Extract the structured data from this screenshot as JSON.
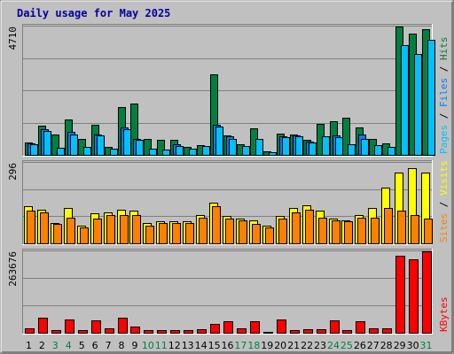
{
  "title": "Daily usage for May 2025",
  "colors": {
    "background": "#c0c0c0",
    "panel": "#c0c0c0",
    "title": "#0000a0",
    "hits": "#008040",
    "files": "#0080ff",
    "pages": "#00c0ff",
    "visits": "#ffff00",
    "sites": "#ff8000",
    "kbytes": "#ff0000",
    "weekday_label": "#000000",
    "weekend_label": "#008040",
    "separator": "#000000"
  },
  "chart_data": [
    {
      "type": "bar",
      "panel": "top",
      "scale_label": "4710",
      "ylim": [
        0,
        4710
      ],
      "right_labels": [
        {
          "text": "Pages",
          "color": "#00c0ff"
        },
        {
          "text": " / ",
          "color": "#000000"
        },
        {
          "text": "Files",
          "color": "#0080ff"
        },
        {
          "text": " / ",
          "color": "#000000"
        },
        {
          "text": "Hits",
          "color": "#008040"
        }
      ],
      "categories": [
        "1",
        "2",
        "3",
        "4",
        "5",
        "6",
        "7",
        "8",
        "9",
        "10",
        "11",
        "12",
        "13",
        "14",
        "15",
        "16",
        "17",
        "18",
        "19",
        "20",
        "21",
        "22",
        "23",
        "24",
        "25",
        "26",
        "27",
        "28",
        "29",
        "30",
        "31"
      ],
      "series": [
        {
          "name": "Hits",
          "color": "#008040",
          "values": [
            440,
            1060,
            740,
            1300,
            590,
            1090,
            290,
            1740,
            1900,
            600,
            560,
            560,
            290,
            360,
            2970,
            720,
            390,
            970,
            120,
            780,
            760,
            550,
            1140,
            1250,
            1350,
            1020,
            600,
            410,
            4710,
            4440,
            4610
          ]
        },
        {
          "name": "Files",
          "color": "#0080ff",
          "values": [
            410,
            940,
            0,
            830,
            0,
            760,
            0,
            1010,
            590,
            0,
            0,
            380,
            0,
            0,
            1120,
            670,
            0,
            0,
            0,
            680,
            720,
            500,
            0,
            710,
            0,
            760,
            0,
            0,
            0,
            0,
            0
          ]
        },
        {
          "name": "Pages",
          "color": "#00c0ff",
          "values": [
            380,
            870,
            250,
            740,
            280,
            700,
            240,
            930,
            540,
            220,
            200,
            340,
            230,
            320,
            1030,
            600,
            340,
            580,
            110,
            640,
            690,
            440,
            670,
            650,
            390,
            600,
            360,
            280,
            4030,
            3710,
            4220
          ]
        }
      ]
    },
    {
      "type": "bar",
      "panel": "middle",
      "scale_label": "296",
      "ylim": [
        0,
        296
      ],
      "right_labels": [
        {
          "text": "Sites",
          "color": "#ff8000"
        },
        {
          "text": " / ",
          "color": "#000000"
        },
        {
          "text": "Visits",
          "color": "#ffff00"
        }
      ],
      "categories": [
        "1",
        "2",
        "3",
        "4",
        "5",
        "6",
        "7",
        "8",
        "9",
        "10",
        "11",
        "12",
        "13",
        "14",
        "15",
        "16",
        "17",
        "18",
        "19",
        "20",
        "21",
        "22",
        "23",
        "24",
        "25",
        "26",
        "27",
        "28",
        "29",
        "30",
        "31"
      ],
      "series": [
        {
          "name": "Visits",
          "color": "#ffff00",
          "values": [
            135,
            125,
            75,
            130,
            65,
            110,
            115,
            125,
            120,
            75,
            80,
            80,
            80,
            105,
            150,
            100,
            90,
            85,
            65,
            100,
            130,
            140,
            120,
            90,
            85,
            105,
            130,
            205,
            260,
            275,
            260
          ]
        },
        {
          "name": "Sites",
          "color": "#ff8000",
          "values": [
            120,
            115,
            72,
            95,
            60,
            90,
            105,
            105,
            105,
            65,
            75,
            75,
            75,
            95,
            135,
            90,
            85,
            70,
            60,
            90,
            115,
            125,
            95,
            85,
            80,
            95,
            95,
            130,
            120,
            105,
            90
          ]
        }
      ]
    },
    {
      "type": "bar",
      "panel": "bottom",
      "scale_label": "263676",
      "ylim": [
        0,
        263676
      ],
      "right_labels": [
        {
          "text": "KBytes",
          "color": "#ff0000"
        }
      ],
      "categories": [
        "1",
        "2",
        "3",
        "4",
        "5",
        "6",
        "7",
        "8",
        "9",
        "10",
        "11",
        "12",
        "13",
        "14",
        "15",
        "16",
        "17",
        "18",
        "19",
        "20",
        "21",
        "22",
        "23",
        "24",
        "25",
        "26",
        "27",
        "28",
        "29",
        "30",
        "31"
      ],
      "series": [
        {
          "name": "KBytes",
          "color": "#ff0000",
          "values": [
            15000,
            48000,
            8000,
            42000,
            10000,
            40000,
            13000,
            50000,
            20000,
            9000,
            9000,
            9000,
            10000,
            12000,
            30000,
            38000,
            14000,
            37000,
            4000,
            42000,
            10000,
            12000,
            12000,
            40000,
            10000,
            37000,
            13000,
            13000,
            250000,
            238000,
            263676
          ]
        }
      ]
    }
  ],
  "x_labels": [
    {
      "text": "1",
      "weekend": false
    },
    {
      "text": "2",
      "weekend": false
    },
    {
      "text": "3",
      "weekend": true
    },
    {
      "text": "4",
      "weekend": true
    },
    {
      "text": "5",
      "weekend": false
    },
    {
      "text": "6",
      "weekend": false
    },
    {
      "text": "7",
      "weekend": false
    },
    {
      "text": "8",
      "weekend": false
    },
    {
      "text": "9",
      "weekend": false
    },
    {
      "text": "10",
      "weekend": true
    },
    {
      "text": "11",
      "weekend": true
    },
    {
      "text": "12",
      "weekend": false
    },
    {
      "text": "13",
      "weekend": false
    },
    {
      "text": "14",
      "weekend": false
    },
    {
      "text": "15",
      "weekend": false
    },
    {
      "text": "16",
      "weekend": false
    },
    {
      "text": "17",
      "weekend": true
    },
    {
      "text": "18",
      "weekend": true
    },
    {
      "text": "19",
      "weekend": false
    },
    {
      "text": "20",
      "weekend": false
    },
    {
      "text": "21",
      "weekend": false
    },
    {
      "text": "22",
      "weekend": false
    },
    {
      "text": "23",
      "weekend": false
    },
    {
      "text": "24",
      "weekend": true
    },
    {
      "text": "25",
      "weekend": true
    },
    {
      "text": "26",
      "weekend": false
    },
    {
      "text": "27",
      "weekend": false
    },
    {
      "text": "28",
      "weekend": false
    },
    {
      "text": "29",
      "weekend": false
    },
    {
      "text": "30",
      "weekend": false
    },
    {
      "text": "31",
      "weekend": true
    }
  ]
}
